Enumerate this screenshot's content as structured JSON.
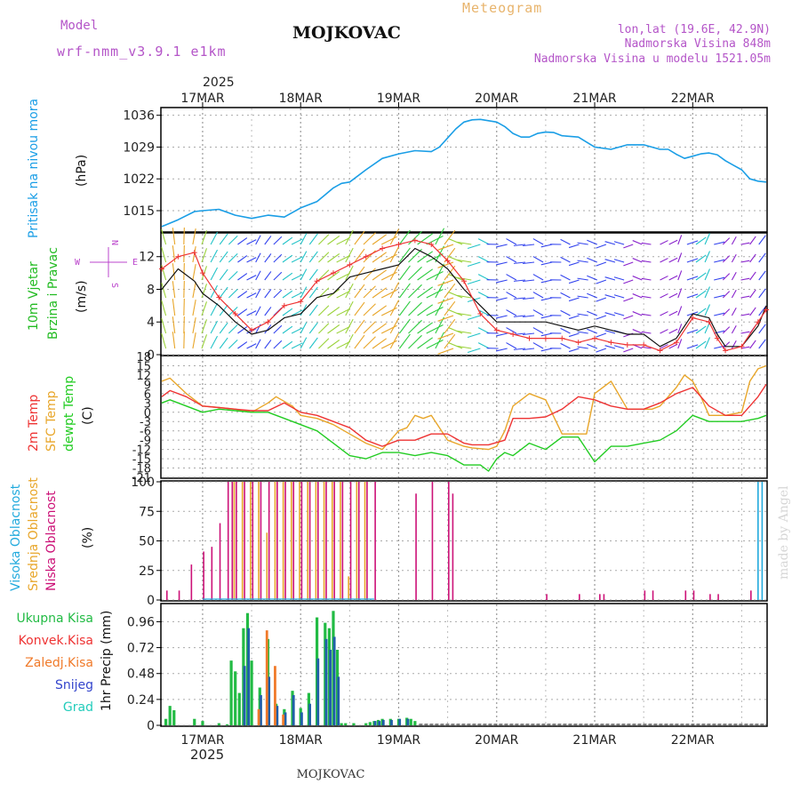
{
  "header": {
    "model_label": "Model",
    "model_name": "wrf-nmm_v3.9.1 e1km",
    "station_title": "MOJKOVAC",
    "meteogram_label": "Meteogram",
    "lonlat": "lon,lat (19.6E, 42.9N)",
    "elevation": "Nadmorska Visina 848m",
    "model_elevation": "Nadmorska Visina u modelu 1521.05m"
  },
  "footer": {
    "station_label": "MOJKOVAC",
    "watermark": "made by Angel"
  },
  "colors": {
    "pressure": "#1a9ee6",
    "temp2m": "#ee3333",
    "sfc_temp": "#e8a62a",
    "dewpt": "#22cc22",
    "cloud_high": "#22aadd",
    "cloud_mid": "#e8a62a",
    "cloud_low": "#cc1177",
    "precip_total": "#22bb44",
    "precip_conv": "#ee3333",
    "precip_frozen": "#f07a2a",
    "precip_snow": "#3344cc",
    "precip_graupel": "#22ccbb",
    "wind_label": "#22bb22",
    "compass": "#bb44cc"
  },
  "chart_data": [
    {
      "type": "line",
      "panel": "pressure",
      "y_title": "Pritisak na nivou mora",
      "y_unit": "(hPa)",
      "x_ticks": [
        "17MAR",
        "18MAR",
        "19MAR",
        "20MAR",
        "21MAR",
        "22MAR"
      ],
      "year": "2025",
      "yticks": [
        "1015",
        "1022",
        "1029",
        "1036"
      ],
      "ylim": [
        1010.5,
        1037.5
      ],
      "x_range_hours": [
        -10,
        138
      ],
      "series": [
        {
          "x": [
            -10,
            -6,
            -2,
            0,
            4,
            8,
            12,
            16,
            20,
            24,
            28,
            30,
            32,
            34,
            36,
            40,
            44,
            48,
            52,
            56,
            58,
            60,
            62,
            64,
            66,
            68,
            70,
            72,
            74,
            76,
            78,
            80,
            82,
            84,
            86,
            88,
            92,
            96,
            100,
            104,
            108,
            112,
            114,
            116,
            118,
            120,
            122,
            124,
            126,
            128,
            130,
            132,
            134,
            136,
            138
          ],
          "values": [
            1011.5,
            1013,
            1014.8,
            1015,
            1015.3,
            1014,
            1013.3,
            1014,
            1013.6,
            1015.6,
            1017,
            1018.5,
            1020,
            1021,
            1021.3,
            1024,
            1026.5,
            1027.5,
            1028.2,
            1028,
            1029,
            1031,
            1033,
            1034.5,
            1035,
            1035.1,
            1034.8,
            1034.5,
            1033.5,
            1032,
            1031.2,
            1031.2,
            1032,
            1032.3,
            1032.2,
            1031.5,
            1031.2,
            1029,
            1028.5,
            1029.5,
            1029.5,
            1028.5,
            1028.5,
            1027.4,
            1026.5,
            1027,
            1027.5,
            1027.7,
            1027.3,
            1026,
            1025,
            1024,
            1022,
            1021.5,
            1021.3
          ]
        }
      ]
    },
    {
      "type": "line",
      "panel": "wind",
      "y_title": "10m Vjetar Brzina i Pravac",
      "y_unit": "(m/s)",
      "yticks": [
        "0",
        "4",
        "8",
        "12"
      ],
      "ylim": [
        0,
        14.8
      ],
      "compass_labels": {
        "north": "N",
        "south": "S",
        "west": "W",
        "east": "E"
      },
      "series": [
        {
          "name": "speed",
          "x": [
            -10,
            -6,
            -2,
            0,
            4,
            8,
            12,
            16,
            20,
            24,
            28,
            32,
            36,
            40,
            44,
            48,
            52,
            56,
            60,
            64,
            68,
            72,
            76,
            80,
            84,
            88,
            92,
            96,
            100,
            104,
            108,
            112,
            116,
            120,
            124,
            126,
            128,
            132,
            136,
            138
          ],
          "values": [
            8,
            10.5,
            9,
            7.5,
            6,
            4,
            2.5,
            3,
            4.5,
            5,
            7,
            7.5,
            9.5,
            10,
            10.5,
            11,
            13,
            12,
            10.5,
            8,
            6,
            4,
            4,
            4,
            4,
            3.5,
            3,
            3.5,
            3,
            2.5,
            2.5,
            1,
            2,
            5,
            4.5,
            2.5,
            1,
            1,
            3.5,
            6
          ]
        },
        {
          "name": "gust",
          "x": [
            -10,
            -6,
            -2,
            0,
            4,
            8,
            12,
            16,
            20,
            24,
            28,
            32,
            36,
            40,
            44,
            48,
            52,
            56,
            60,
            64,
            68,
            72,
            76,
            80,
            84,
            88,
            92,
            96,
            100,
            104,
            108,
            112,
            116,
            120,
            124,
            126,
            128,
            132,
            136,
            138
          ],
          "values": [
            10.5,
            12,
            12.5,
            10,
            7,
            5,
            3,
            4,
            6,
            6.5,
            9,
            10,
            11,
            12,
            13,
            13.5,
            14,
            13.5,
            11.5,
            9,
            5,
            3,
            2.5,
            2,
            2,
            2,
            1.5,
            2,
            1.5,
            1.2,
            1.2,
            0.5,
            1.5,
            4.5,
            4,
            2,
            0.5,
            1,
            4,
            5.5
          ]
        }
      ]
    },
    {
      "type": "line",
      "panel": "temperature",
      "y_titles": [
        "2m Temp",
        "SFC Temp",
        "dewpt Temp"
      ],
      "y_unit": "(C)",
      "yticks": [
        "-21",
        "-18",
        "-15",
        "-12",
        "-9",
        "-6",
        "-3",
        "0",
        "3",
        "6",
        "9",
        "12",
        "15",
        "18"
      ],
      "ylim": [
        -21,
        18
      ],
      "series": [
        {
          "name": "2m Temp",
          "x": [
            -10,
            -8,
            -4,
            0,
            4,
            8,
            12,
            16,
            20,
            24,
            28,
            32,
            36,
            40,
            44,
            48,
            52,
            56,
            60,
            64,
            66,
            70,
            74,
            76,
            80,
            84,
            88,
            92,
            96,
            100,
            104,
            108,
            112,
            116,
            120,
            124,
            128,
            132,
            136,
            138
          ],
          "values": [
            5,
            7,
            5,
            2,
            1.5,
            1,
            0.5,
            0.5,
            3,
            0,
            -1,
            -3,
            -5,
            -9,
            -11,
            -9,
            -9,
            -7,
            -7,
            -10,
            -10.5,
            -10.5,
            -9,
            -2,
            -2,
            -1.5,
            1,
            5,
            4,
            2,
            1,
            1,
            3,
            6,
            8,
            2,
            -1,
            -1,
            5,
            9
          ]
        },
        {
          "name": "SFC Temp",
          "x": [
            -10,
            -8,
            -4,
            0,
            4,
            8,
            12,
            16,
            18,
            22,
            24,
            28,
            32,
            36,
            40,
            44,
            48,
            50,
            52,
            54,
            56,
            60,
            64,
            66,
            70,
            72,
            74,
            76,
            80,
            84,
            88,
            92,
            94,
            96,
            100,
            104,
            108,
            110,
            112,
            116,
            118,
            120,
            122,
            124,
            128,
            132,
            134,
            136,
            138
          ],
          "values": [
            10,
            11,
            6,
            2,
            1.5,
            1,
            0,
            3,
            5,
            2,
            -1,
            -2,
            -4,
            -7,
            -10,
            -12,
            -6,
            -5,
            -1,
            -2,
            -1,
            -9,
            -11,
            -11.5,
            -12,
            -11,
            -6,
            2,
            6,
            4,
            -7,
            -7,
            -7,
            6,
            10,
            1,
            1,
            1,
            2,
            8,
            12,
            10,
            5,
            -1,
            -1,
            0,
            10,
            14,
            15
          ]
        },
        {
          "name": "dewpt Temp",
          "x": [
            -10,
            -8,
            -4,
            0,
            4,
            8,
            12,
            16,
            20,
            24,
            28,
            32,
            36,
            40,
            44,
            48,
            52,
            56,
            60,
            64,
            68,
            70,
            72,
            74,
            76,
            80,
            84,
            88,
            92,
            96,
            100,
            104,
            108,
            112,
            116,
            120,
            124,
            128,
            132,
            136,
            138
          ],
          "values": [
            3,
            4,
            2,
            0,
            1,
            0.5,
            0,
            0,
            -2,
            -4,
            -6,
            -10,
            -14,
            -15,
            -13,
            -13,
            -14,
            -13,
            -14,
            -17,
            -17,
            -19,
            -15,
            -13,
            -14,
            -10,
            -12,
            -8,
            -8,
            -16,
            -11,
            -11,
            -10,
            -9,
            -6,
            -1,
            -3,
            -3,
            -3,
            -2,
            -1
          ]
        }
      ]
    },
    {
      "type": "bar",
      "panel": "clouds",
      "y_titles": [
        "Visoka Oblacnost",
        "Srednja Oblacnost",
        "Niska Oblacnost"
      ],
      "y_unit": "(%)",
      "yticks": [
        "0",
        "25",
        "50",
        "75",
        "100"
      ],
      "ylim": [
        0,
        100
      ],
      "series": [
        {
          "name": "Visoka Oblacnost",
          "x": [
            136,
            137
          ],
          "values": [
            100,
            100
          ]
        },
        {
          "name": "Srednja Oblacnost",
          "x": [
            8,
            10,
            12,
            14,
            16,
            18,
            20,
            22,
            24,
            26,
            28,
            30,
            32,
            34,
            36,
            38,
            40
          ],
          "values": [
            100,
            100,
            100,
            100,
            57,
            100,
            100,
            100,
            100,
            100,
            100,
            100,
            100,
            100,
            20,
            100,
            100
          ]
        },
        {
          "name": "Niska Oblacnost",
          "x": [
            -9,
            -6,
            -3,
            0,
            2,
            4,
            6,
            7,
            8,
            10,
            12,
            14,
            16,
            18,
            20,
            22,
            24,
            26,
            28,
            30,
            32,
            34,
            36,
            38,
            40,
            42,
            52,
            56,
            60,
            61,
            84,
            92,
            97,
            98,
            108,
            110,
            118,
            120,
            124,
            126,
            134
          ],
          "values": [
            8,
            8,
            30,
            41,
            45,
            65,
            100,
            100,
            100,
            100,
            100,
            100,
            100,
            100,
            100,
            100,
            100,
            100,
            100,
            100,
            100,
            100,
            100,
            100,
            100,
            100,
            90,
            100,
            100,
            90,
            5,
            5,
            5,
            5,
            8,
            8,
            8,
            8,
            5,
            5,
            8
          ]
        }
      ]
    },
    {
      "type": "bar",
      "panel": "precip",
      "y_titles": [
        "Ukupna Kisa",
        "Konvek.Kisa",
        "Zaledj.Kisa",
        "Snijeg",
        "Grad"
      ],
      "y_unit": "1hr Precip (mm)",
      "yticks": [
        "0",
        "0.24",
        "0.48",
        "0.72",
        "0.96"
      ],
      "ylim": [
        0,
        1.12
      ],
      "x_ticks": [
        "17MAR",
        "18MAR",
        "19MAR",
        "20MAR",
        "21MAR",
        "22MAR"
      ],
      "year": "2025",
      "series": [
        {
          "name": "Ukupna Kisa",
          "x": [
            -9,
            -8,
            -7,
            -2,
            0,
            4,
            6,
            7,
            8,
            9,
            10,
            11,
            12,
            14,
            16,
            18,
            20,
            22,
            24,
            26,
            28,
            30,
            31,
            32,
            33,
            34,
            35,
            37,
            40,
            41,
            42,
            43,
            44,
            46,
            48,
            50,
            51,
            52
          ],
          "values": [
            0.06,
            0.18,
            0.14,
            0.06,
            0.04,
            0.02,
            0.01,
            0.6,
            0.5,
            0.3,
            0.9,
            1.04,
            0.6,
            0.35,
            0.8,
            0.2,
            0.15,
            0.32,
            0.16,
            0.3,
            1.0,
            0.95,
            0.9,
            1.06,
            0.7,
            0.02,
            0.02,
            0.02,
            0.02,
            0.03,
            0.04,
            0.05,
            0.06,
            0.06,
            0.06,
            0.07,
            0.06,
            0.04
          ]
        },
        {
          "name": "Snijeg",
          "x": [
            10,
            11,
            14,
            16,
            18,
            20,
            22,
            24,
            26,
            28,
            30,
            31,
            32,
            33,
            42,
            43,
            44,
            46,
            48,
            50
          ],
          "values": [
            0.55,
            0.9,
            0.28,
            0.45,
            0.18,
            0.12,
            0.28,
            0.12,
            0.2,
            0.62,
            0.8,
            0.7,
            0.82,
            0.45,
            0.04,
            0.04,
            0.05,
            0.05,
            0.06,
            0.06
          ]
        },
        {
          "name": "Zaledj.Kisa",
          "x": [
            14,
            16,
            18,
            20
          ],
          "values": [
            0.15,
            0.88,
            0.55,
            0.1
          ]
        }
      ]
    }
  ]
}
